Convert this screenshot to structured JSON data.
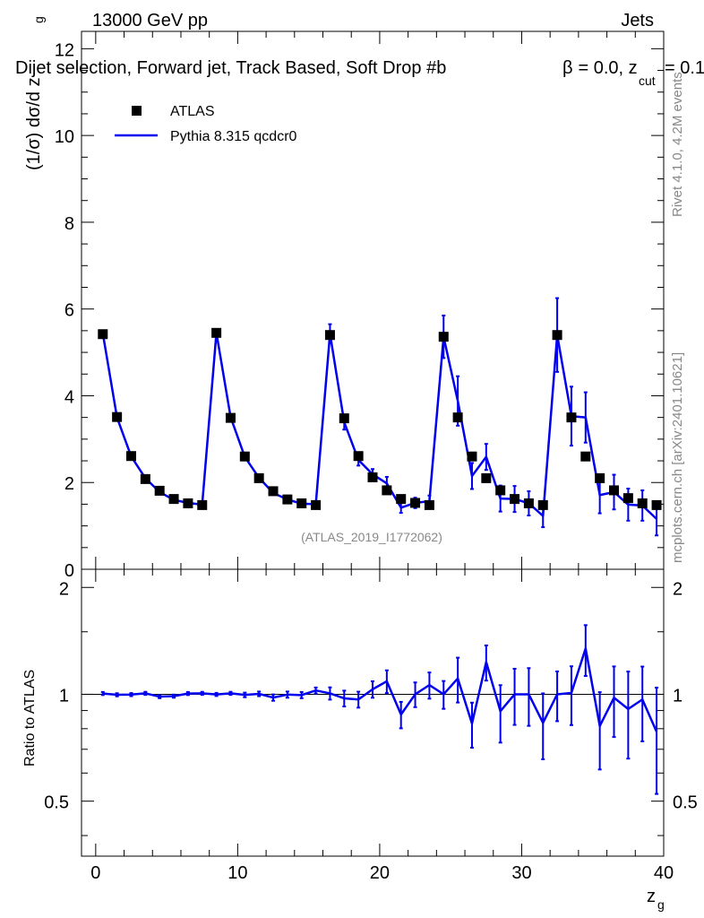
{
  "header": {
    "energy_label": "13000 GeV pp",
    "category_label": "Jets",
    "selection_title": "Dijet selection, Forward jet, Track Based, Soft Drop #b",
    "beta_eq": "= 0.0, z",
    "zcut_sub": "cut",
    "zcut_eq": "= 0.1",
    "side_rivet": "Rivet 4.1.0,  4.2M events",
    "side_mcplots": "mcplots.cern.ch [arXiv:2401.10621]",
    "analysis_id": "(ATLAS_2019_I1772062)"
  },
  "legend": {
    "data_label": "ATLAS",
    "mc_label": "Pythia 8.315 qcdcr0"
  },
  "colors": {
    "data": "#000000",
    "mc": "#0000ee",
    "axis": "#000000"
  },
  "chart_data": [
    {
      "type": "scatter",
      "panel": "main",
      "title": "Dijet selection, Forward jet, Track Based, Soft Drop",
      "xlabel": "z",
      "xlabel_sub": "g",
      "ylabel": "(1/σ) dσ/d z",
      "ylabel_sub": "g",
      "xlim": [
        -1,
        40
      ],
      "ylim": [
        0,
        12.4
      ],
      "yticks": [
        0,
        2,
        4,
        6,
        8,
        10,
        12
      ],
      "ytick_labels": [
        "0",
        "2",
        "4",
        "6",
        "8",
        "10",
        "12"
      ],
      "x": [
        0.5,
        1.5,
        2.5,
        3.5,
        4.5,
        5.5,
        6.5,
        7.5,
        8.5,
        9.5,
        10.5,
        11.5,
        12.5,
        13.5,
        14.5,
        15.5,
        16.5,
        17.5,
        18.5,
        19.5,
        20.5,
        21.5,
        22.5,
        23.5,
        24.5,
        25.5,
        26.5,
        27.5,
        28.5,
        29.5,
        30.5,
        31.5,
        32.5,
        33.5,
        34.5,
        35.5,
        36.5,
        37.5,
        38.5,
        39.5
      ],
      "series": [
        {
          "name": "ATLAS",
          "values": [
            5.42,
            3.51,
            2.61,
            2.08,
            1.81,
            1.62,
            1.52,
            1.48,
            5.45,
            3.49,
            2.6,
            2.1,
            1.8,
            1.61,
            1.52,
            1.48,
            5.4,
            3.48,
            2.61,
            2.12,
            1.82,
            1.62,
            1.53,
            1.48,
            5.36,
            3.5,
            2.6,
            2.1,
            1.82,
            1.62,
            1.52,
            1.48,
            5.4,
            3.5,
            2.6,
            2.1,
            1.82,
            1.64,
            1.52,
            1.48
          ]
        },
        {
          "name": "Pythia 8.315 qcdcr0",
          "values": [
            5.44,
            3.5,
            2.6,
            2.1,
            1.78,
            1.6,
            1.53,
            1.49,
            5.45,
            3.51,
            2.59,
            2.11,
            1.76,
            1.61,
            1.51,
            1.5,
            5.43,
            3.39,
            2.52,
            2.19,
            1.98,
            1.42,
            1.53,
            1.57,
            5.36,
            3.88,
            2.15,
            2.59,
            1.63,
            1.62,
            1.52,
            1.23,
            5.4,
            3.53,
            3.5,
            1.71,
            1.78,
            1.49,
            1.47,
            1.16
          ],
          "errors": [
            0.04,
            0.03,
            0.03,
            0.02,
            0.02,
            0.02,
            0.02,
            0.02,
            0.07,
            0.05,
            0.04,
            0.03,
            0.03,
            0.03,
            0.03,
            0.03,
            0.22,
            0.17,
            0.13,
            0.12,
            0.15,
            0.12,
            0.12,
            0.13,
            0.49,
            0.57,
            0.3,
            0.3,
            0.3,
            0.3,
            0.28,
            0.26,
            0.85,
            0.68,
            0.58,
            0.42,
            0.4,
            0.37,
            0.35,
            0.38
          ]
        }
      ]
    },
    {
      "type": "line",
      "panel": "ratio",
      "xlabel": "z",
      "xlabel_sub": "g",
      "ylabel": "Ratio to ATLAS",
      "xlim": [
        -1,
        40
      ],
      "ylim": [
        0.35,
        2.25
      ],
      "xticks": [
        0,
        10,
        20,
        30,
        40
      ],
      "xtick_labels": [
        "0",
        "10",
        "20",
        "30",
        "40"
      ],
      "yticks": [
        0.5,
        1,
        2
      ],
      "ytick_labels": [
        "0.5",
        "1",
        "2"
      ],
      "reference": 1,
      "x": [
        0.5,
        1.5,
        2.5,
        3.5,
        4.5,
        5.5,
        6.5,
        7.5,
        8.5,
        9.5,
        10.5,
        11.5,
        12.5,
        13.5,
        14.5,
        15.5,
        16.5,
        17.5,
        18.5,
        19.5,
        20.5,
        21.5,
        22.5,
        23.5,
        24.5,
        25.5,
        26.5,
        27.5,
        28.5,
        29.5,
        30.5,
        31.5,
        32.5,
        33.5,
        34.5,
        35.5,
        36.5,
        37.5,
        38.5,
        39.5
      ],
      "series": [
        {
          "name": "Pythia 8.315 qcdcr0",
          "values": [
            1.005,
            0.997,
            0.998,
            1.006,
            0.985,
            0.988,
            1.005,
            1.006,
            0.999,
            1.006,
            0.996,
            1.003,
            0.979,
            0.998,
            0.995,
            1.025,
            1.006,
            0.974,
            0.967,
            1.033,
            1.088,
            0.877,
            1.0,
            1.062,
            1.0,
            1.108,
            0.827,
            1.233,
            0.896,
            1.0,
            1.0,
            0.831,
            1.0,
            1.009,
            1.346,
            0.814,
            0.978,
            0.909,
            0.967,
            0.784
          ],
          "errors": [
            0.01,
            0.01,
            0.01,
            0.01,
            0.01,
            0.01,
            0.01,
            0.01,
            0.01,
            0.01,
            0.015,
            0.015,
            0.02,
            0.02,
            0.02,
            0.02,
            0.04,
            0.05,
            0.05,
            0.055,
            0.08,
            0.075,
            0.08,
            0.09,
            0.09,
            0.16,
            0.12,
            0.14,
            0.165,
            0.18,
            0.185,
            0.175,
            0.16,
            0.19,
            0.22,
            0.2,
            0.22,
            0.25,
            0.23,
            0.26
          ]
        }
      ]
    }
  ]
}
